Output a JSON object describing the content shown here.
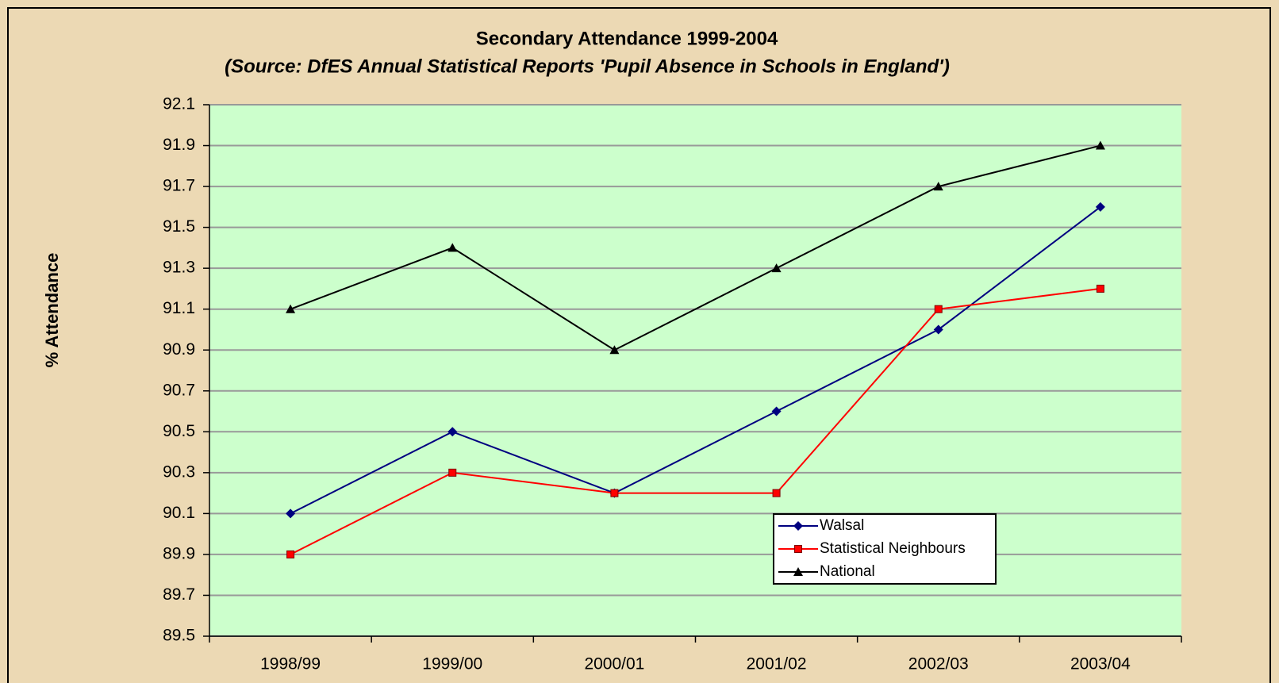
{
  "chart_data": {
    "type": "line",
    "title": "Secondary Attendance 1999-2004",
    "subtitle": "(Source: DfES Annual Statistical Reports 'Pupil Absence in Schools in England')",
    "y_label": "% Attendance",
    "categories": [
      "1998/99",
      "1999/00",
      "2000/01",
      "2001/02",
      "2002/03",
      "2003/04"
    ],
    "series": [
      {
        "name": "Walsal",
        "color": "#000080",
        "marker": "diamond",
        "values": [
          90.1,
          90.5,
          90.2,
          90.6,
          91.0,
          91.6
        ]
      },
      {
        "name": "Statistical Neighbours",
        "color": "#ff0000",
        "marker": "square",
        "values": [
          89.9,
          90.3,
          90.2,
          90.2,
          91.1,
          91.2
        ]
      },
      {
        "name": "National",
        "color": "#000000",
        "marker": "triangle",
        "values": [
          91.1,
          91.4,
          90.9,
          91.3,
          91.7,
          91.9
        ]
      }
    ],
    "ylim": [
      89.5,
      92.1
    ],
    "yticks": [
      89.5,
      89.7,
      89.9,
      90.1,
      90.3,
      90.5,
      90.7,
      90.9,
      91.1,
      91.3,
      91.5,
      91.7,
      91.9,
      92.1
    ],
    "grid": true,
    "legend": "lower right"
  }
}
